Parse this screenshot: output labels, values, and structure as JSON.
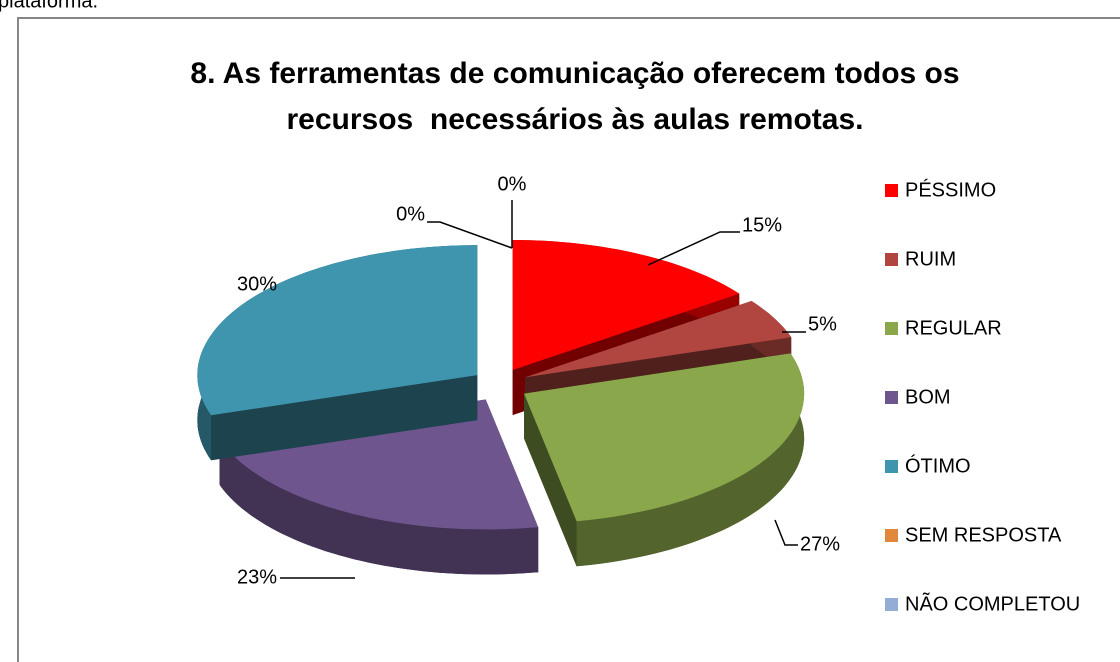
{
  "page_text": "plataforma.",
  "chart_data": {
    "type": "pie3d",
    "title": [
      "8. As ferramentas de comunicação oferecem todos os",
      "recursos  necessários às aulas remotas."
    ],
    "categories": [
      "PÉSSIMO",
      "RUIM",
      "REGULAR",
      "BOM",
      "ÓTIMO",
      "SEM RESPOSTA",
      "NÃO COMPLETOU"
    ],
    "values": [
      15,
      5,
      27,
      23,
      30,
      0,
      0
    ],
    "value_labels": [
      "15%",
      "5%",
      "27%",
      "23%",
      "30%",
      "0%",
      "0%"
    ],
    "colors": [
      "#ff0000",
      "#b0463f",
      "#8aa84b",
      "#6e558e",
      "#3f95ae",
      "#e0873b",
      "#93add6"
    ],
    "legend": "right"
  }
}
